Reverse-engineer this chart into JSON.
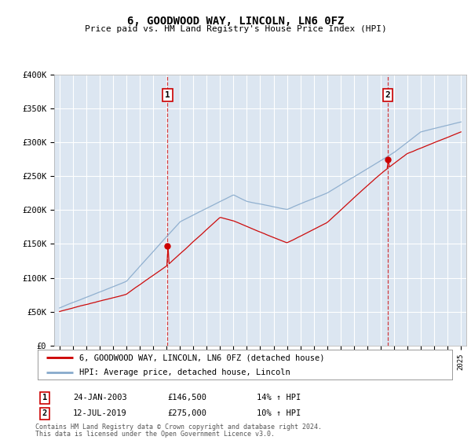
{
  "title": "6, GOODWOOD WAY, LINCOLN, LN6 0FZ",
  "subtitle": "Price paid vs. HM Land Registry's House Price Index (HPI)",
  "background_color": "#ffffff",
  "plot_bg_color": "#dce6f1",
  "ylim": [
    0,
    400000
  ],
  "yticks": [
    0,
    50000,
    100000,
    150000,
    200000,
    250000,
    300000,
    350000,
    400000
  ],
  "ytick_labels": [
    "£0",
    "£50K",
    "£100K",
    "£150K",
    "£200K",
    "£250K",
    "£300K",
    "£350K",
    "£400K"
  ],
  "sale1_date_num": 2003.07,
  "sale1_price": 146500,
  "sale1_label": "1",
  "sale1_date_str": "24-JAN-2003",
  "sale1_price_str": "£146,500",
  "sale1_hpi_str": "14% ↑ HPI",
  "sale2_date_num": 2019.54,
  "sale2_price": 275000,
  "sale2_label": "2",
  "sale2_date_str": "12-JUL-2019",
  "sale2_price_str": "£275,000",
  "sale2_hpi_str": "10% ↑ HPI",
  "red_line_color": "#cc0000",
  "blue_line_color": "#88aacc",
  "legend_line1": "6, GOODWOOD WAY, LINCOLN, LN6 0FZ (detached house)",
  "legend_line2": "HPI: Average price, detached house, Lincoln",
  "footer_line1": "Contains HM Land Registry data © Crown copyright and database right 2024.",
  "footer_line2": "This data is licensed under the Open Government Licence v3.0."
}
